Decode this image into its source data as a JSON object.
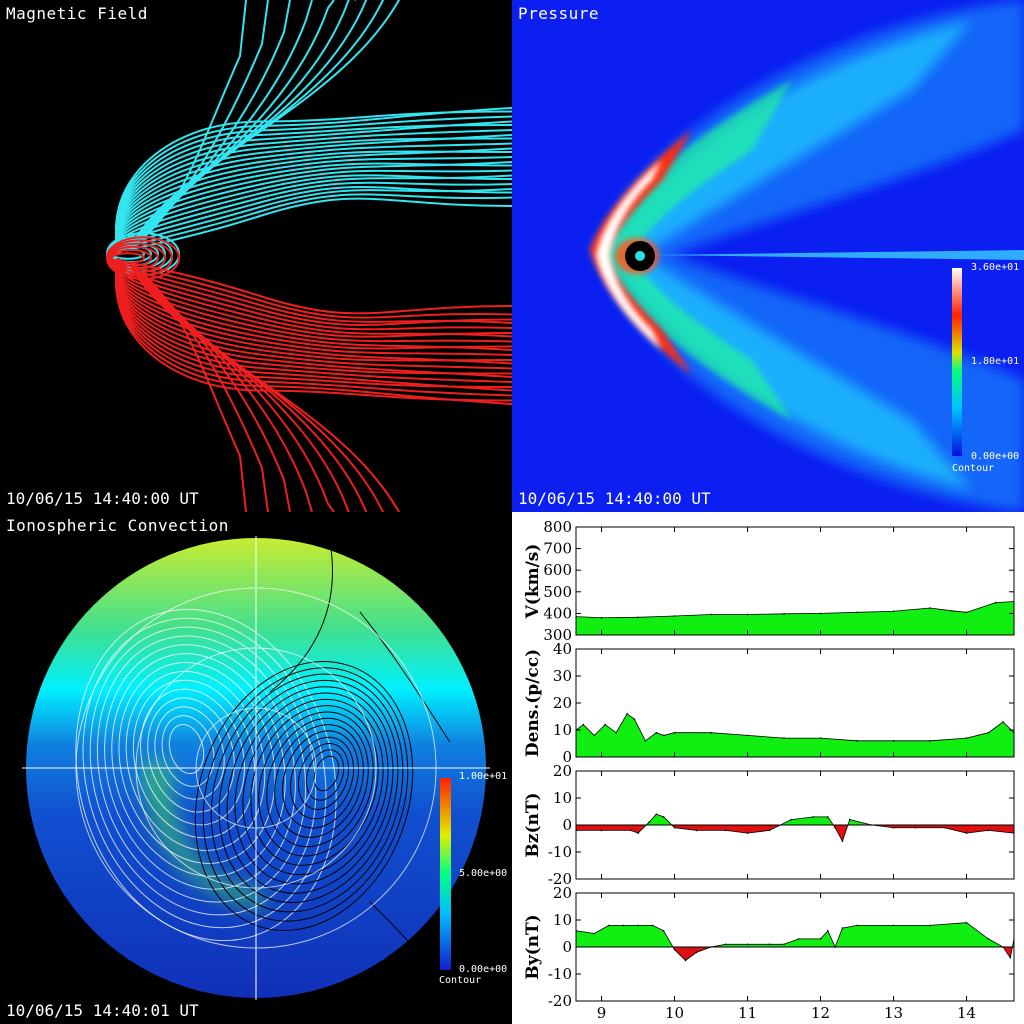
{
  "panels": {
    "magnetic": {
      "title": "Magnetic Field",
      "timestamp": "10/06/15 14:40:00 UT"
    },
    "pressure": {
      "title": "Pressure",
      "timestamp": "10/06/15 14:40:00 UT",
      "colorbar": {
        "max": "3.60e+01",
        "mid": "1.80e+01",
        "min": "0.00e+00",
        "caption": "Contour"
      }
    },
    "ionosphere": {
      "title": "Ionospheric Convection",
      "timestamp": "10/06/15 14:40:01 UT",
      "colorbar": {
        "max": "1.00e+01",
        "mid": "5.00e+00",
        "min": "0.00e+00",
        "caption": "Contour"
      }
    }
  },
  "colors": {
    "north_lines": "#33e5f0",
    "south_lines": "#ee1f1f",
    "fill_positive": "#11ee11",
    "fill_negative": "#dd1111"
  },
  "chart_data": [
    {
      "type": "area",
      "ylabel": "V(km/s)",
      "ylim": [
        300,
        800
      ],
      "yticks": [
        300,
        400,
        500,
        600,
        700,
        800
      ],
      "x": [
        8.65,
        9.0,
        9.5,
        10.0,
        10.5,
        11.0,
        11.5,
        12.0,
        12.5,
        13.0,
        13.5,
        13.8,
        14.0,
        14.4,
        14.65
      ],
      "values": [
        385,
        380,
        382,
        388,
        395,
        395,
        398,
        400,
        405,
        410,
        425,
        412,
        405,
        450,
        455
      ]
    },
    {
      "type": "area",
      "ylabel": "Dens.(p/cc)",
      "ylim": [
        0,
        40
      ],
      "yticks": [
        0,
        10,
        20,
        30,
        40
      ],
      "x": [
        8.65,
        8.75,
        8.9,
        9.05,
        9.2,
        9.35,
        9.45,
        9.6,
        9.75,
        9.85,
        10.0,
        10.5,
        11.0,
        11.5,
        12.0,
        12.5,
        13.0,
        13.5,
        14.0,
        14.3,
        14.5,
        14.65
      ],
      "values": [
        10,
        12,
        8,
        12,
        9,
        16,
        14,
        6,
        9,
        8,
        9,
        9,
        8,
        7,
        7,
        6,
        6,
        6,
        7,
        9,
        13,
        9
      ]
    },
    {
      "type": "area",
      "ylabel": "Bz(nT)",
      "ylim": [
        -20,
        20
      ],
      "yticks": [
        -20,
        -10,
        0,
        10,
        20
      ],
      "x": [
        8.65,
        9.0,
        9.4,
        9.5,
        9.65,
        9.75,
        9.85,
        10.0,
        10.3,
        10.7,
        11.0,
        11.3,
        11.6,
        11.9,
        12.1,
        12.2,
        12.3,
        12.4,
        12.7,
        13.0,
        13.3,
        13.7,
        14.0,
        14.3,
        14.65
      ],
      "values": [
        -2,
        -2,
        -2,
        -3,
        1,
        4,
        3,
        -1,
        -2,
        -2,
        -3,
        -2,
        2,
        3,
        3,
        -1,
        -6,
        2,
        0,
        -1,
        -1,
        -1,
        -3,
        -2,
        -3
      ]
    },
    {
      "type": "area",
      "ylabel": "By(nT)",
      "ylim": [
        -20,
        20
      ],
      "yticks": [
        -20,
        -10,
        0,
        10,
        20
      ],
      "x": [
        8.65,
        8.9,
        9.1,
        9.3,
        9.5,
        9.7,
        9.85,
        10.0,
        10.15,
        10.3,
        10.5,
        10.7,
        11.0,
        11.3,
        11.5,
        11.7,
        12.0,
        12.1,
        12.2,
        12.3,
        12.5,
        13.0,
        13.5,
        14.0,
        14.3,
        14.5,
        14.6,
        14.65
      ],
      "values": [
        6,
        5,
        8,
        8,
        8,
        8,
        6,
        -1,
        -5,
        -2,
        0,
        1,
        1,
        1,
        1,
        3,
        3,
        6,
        0,
        7,
        8,
        8,
        8,
        9,
        3,
        0,
        -4,
        3
      ]
    },
    {
      "type": "axis",
      "xlim": [
        8.65,
        14.65
      ],
      "xticks": [
        9,
        10,
        11,
        12,
        13,
        14
      ],
      "xticklabels": [
        "9",
        "10",
        "11",
        "12",
        "13",
        "14"
      ]
    }
  ]
}
